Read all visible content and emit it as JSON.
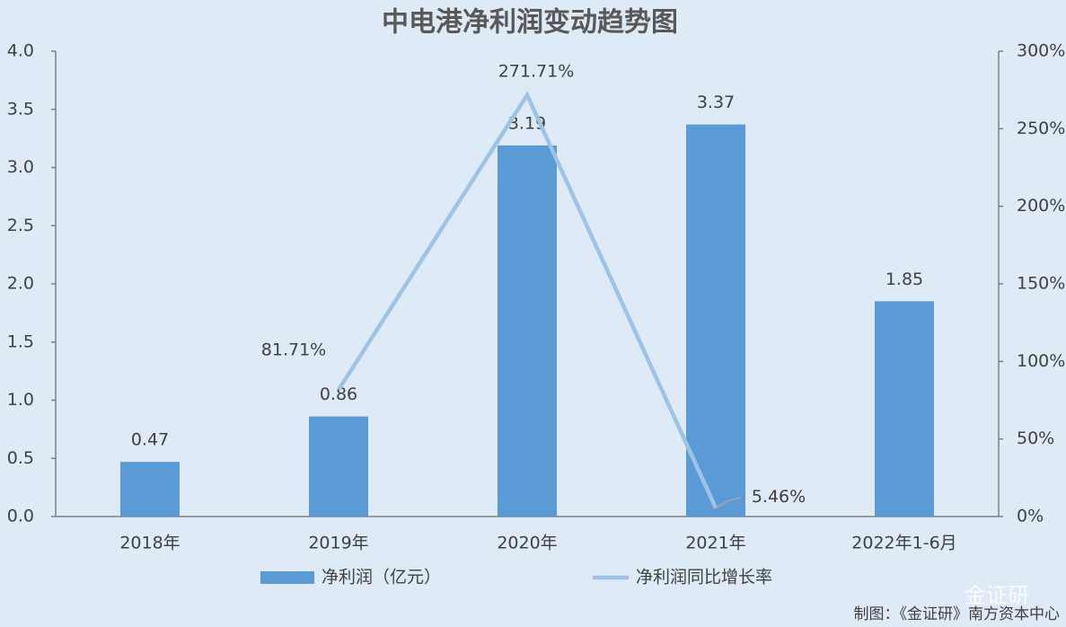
{
  "chart_data": {
    "type": "bar_line",
    "title": "中电港净利润变动趋势图",
    "categories": [
      "2018年",
      "2019年",
      "2020年",
      "2021年",
      "2022年1-6月"
    ],
    "series": [
      {
        "name": "净利润（亿元）",
        "color": "#5b9bd5",
        "values": [
          0.47,
          0.86,
          3.19,
          3.37,
          1.85
        ]
      },
      {
        "name": "净利润同比增长率",
        "color": "#9dc3e6",
        "axis": "y2",
        "values": [
          null,
          81.71,
          271.71,
          5.46,
          null
        ],
        "value_labels": [
          null,
          "81.71%",
          "271.71%",
          "5.46%",
          null
        ]
      }
    ],
    "ylim": [
      0,
      4
    ],
    "yticks": [
      {
        "value": 0,
        "label": "0.0"
      },
      0.5,
      {
        "value": 1,
        "label": "1.0"
      },
      1.5,
      {
        "value": 2,
        "label": "2.0"
      },
      2.5,
      {
        "value": 3,
        "label": "3.0"
      },
      3.5,
      {
        "value": 4,
        "label": "4.0"
      }
    ],
    "y2lim": [
      0,
      300
    ],
    "y2ticks": [
      {
        "value": 0,
        "label": "0%"
      },
      {
        "value": 50,
        "label": "50%"
      },
      {
        "value": 100,
        "label": "100%"
      },
      {
        "value": 150,
        "label": "150%"
      },
      {
        "value": 200,
        "label": "200%"
      },
      {
        "value": 250,
        "label": "250%"
      },
      {
        "value": 300,
        "label": "300%"
      }
    ],
    "source": "制图：《金证研》南方资本中心",
    "watermark": "金证研"
  }
}
